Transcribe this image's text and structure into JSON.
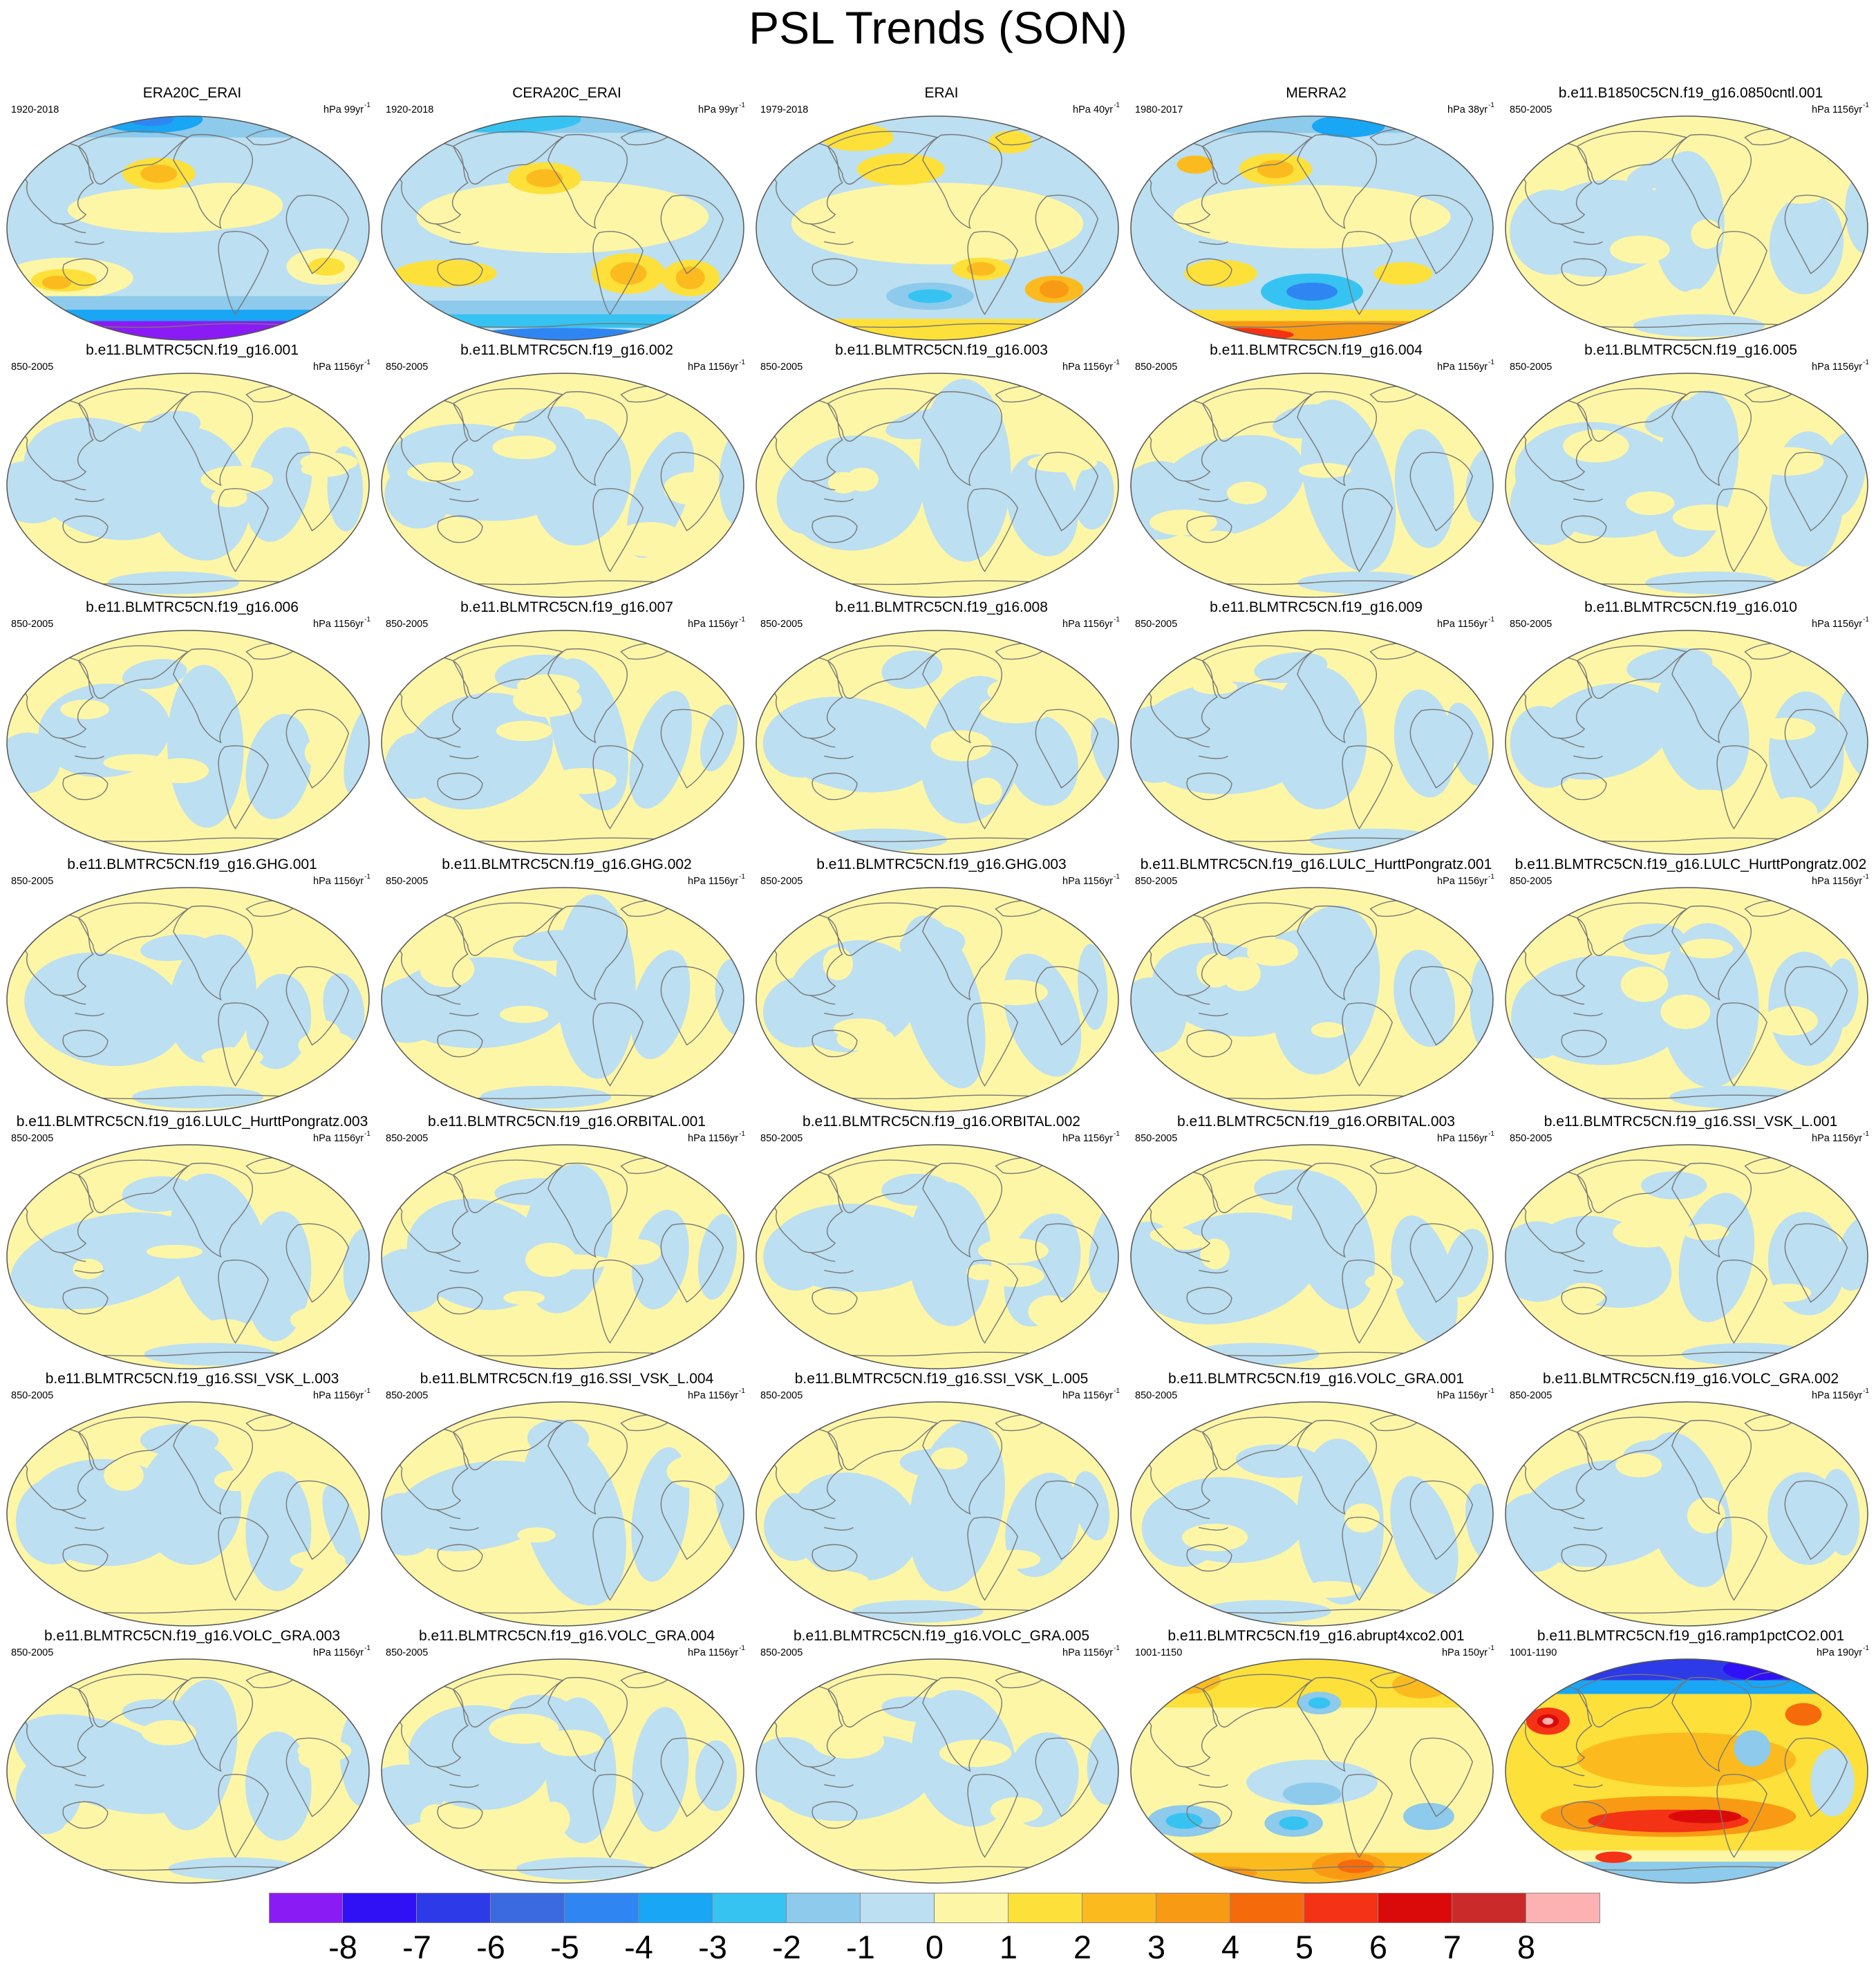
{
  "title": "PSL Trends (SON)",
  "colors": {
    "levels": [
      "#8b1bf5",
      "#3010f5",
      "#2d3ae8",
      "#3b6ae0",
      "#2f86f2",
      "#18a6f5",
      "#36c3f2",
      "#8dcaeb",
      "#bcdff1",
      "#fdf6a6",
      "#fde03a",
      "#fbbb1e",
      "#f99a14",
      "#f56b0c",
      "#f43215",
      "#da0a0a",
      "#cb2a2a",
      "#fcb2b2"
    ],
    "coast": "#777777",
    "outline": "#555555"
  },
  "colorbar": {
    "labels": [
      "-8",
      "-7",
      "-6",
      "-5",
      "-4",
      "-3",
      "-2",
      "-1",
      "0",
      "1",
      "2",
      "3",
      "4",
      "5",
      "6",
      "7",
      "8"
    ]
  },
  "chart_data": {
    "type": "heatmap",
    "title": "PSL Trends (SON)",
    "projection": "Robinson, global, centered on the Pacific",
    "contour_levels": [
      -8,
      -7,
      -6,
      -5,
      -4,
      -3,
      -2,
      -1,
      0,
      1,
      2,
      3,
      4,
      5,
      6,
      7,
      8
    ],
    "panels": [
      {
        "title": "ERA20C_ERAI",
        "period": "1920-2018",
        "units_base": "hPa 99yr",
        "units_exp": "-1",
        "pattern": "era20c"
      },
      {
        "title": "CERA20C_ERAI",
        "period": "1920-2018",
        "units_base": "hPa 99yr",
        "units_exp": "-1",
        "pattern": "cera20c"
      },
      {
        "title": "ERAI",
        "period": "1979-2018",
        "units_base": "hPa 40yr",
        "units_exp": "-1",
        "pattern": "erai"
      },
      {
        "title": "MERRA2",
        "period": "1980-2017",
        "units_base": "hPa 38yr",
        "units_exp": "-1",
        "pattern": "merra2"
      },
      {
        "title": "b.e11.B1850C5CN.f19_g16.0850cntl.001",
        "period": "850-2005",
        "units_base": "hPa 1156yr",
        "units_exp": "-1",
        "pattern": "weak"
      },
      {
        "title": "b.e11.BLMTRC5CN.f19_g16.001",
        "period": "850-2005",
        "units_base": "hPa 1156yr",
        "units_exp": "-1",
        "pattern": "weak"
      },
      {
        "title": "b.e11.BLMTRC5CN.f19_g16.002",
        "period": "850-2005",
        "units_base": "hPa 1156yr",
        "units_exp": "-1",
        "pattern": "weak"
      },
      {
        "title": "b.e11.BLMTRC5CN.f19_g16.003",
        "period": "850-2005",
        "units_base": "hPa 1156yr",
        "units_exp": "-1",
        "pattern": "weak"
      },
      {
        "title": "b.e11.BLMTRC5CN.f19_g16.004",
        "period": "850-2005",
        "units_base": "hPa 1156yr",
        "units_exp": "-1",
        "pattern": "weak"
      },
      {
        "title": "b.e11.BLMTRC5CN.f19_g16.005",
        "period": "850-2005",
        "units_base": "hPa 1156yr",
        "units_exp": "-1",
        "pattern": "weak"
      },
      {
        "title": "b.e11.BLMTRC5CN.f19_g16.006",
        "period": "850-2005",
        "units_base": "hPa 1156yr",
        "units_exp": "-1",
        "pattern": "weak"
      },
      {
        "title": "b.e11.BLMTRC5CN.f19_g16.007",
        "period": "850-2005",
        "units_base": "hPa 1156yr",
        "units_exp": "-1",
        "pattern": "weak"
      },
      {
        "title": "b.e11.BLMTRC5CN.f19_g16.008",
        "period": "850-2005",
        "units_base": "hPa 1156yr",
        "units_exp": "-1",
        "pattern": "weak"
      },
      {
        "title": "b.e11.BLMTRC5CN.f19_g16.009",
        "period": "850-2005",
        "units_base": "hPa 1156yr",
        "units_exp": "-1",
        "pattern": "weak"
      },
      {
        "title": "b.e11.BLMTRC5CN.f19_g16.010",
        "period": "850-2005",
        "units_base": "hPa 1156yr",
        "units_exp": "-1",
        "pattern": "weak"
      },
      {
        "title": "b.e11.BLMTRC5CN.f19_g16.GHG.001",
        "period": "850-2005",
        "units_base": "hPa 1156yr",
        "units_exp": "-1",
        "pattern": "weak"
      },
      {
        "title": "b.e11.BLMTRC5CN.f19_g16.GHG.002",
        "period": "850-2005",
        "units_base": "hPa 1156yr",
        "units_exp": "-1",
        "pattern": "weak"
      },
      {
        "title": "b.e11.BLMTRC5CN.f19_g16.GHG.003",
        "period": "850-2005",
        "units_base": "hPa 1156yr",
        "units_exp": "-1",
        "pattern": "weak"
      },
      {
        "title": "b.e11.BLMTRC5CN.f19_g16.LULC_HurttPongratz.001",
        "period": "850-2005",
        "units_base": "hPa 1156yr",
        "units_exp": "-1",
        "pattern": "weak"
      },
      {
        "title": "b.e11.BLMTRC5CN.f19_g16.LULC_HurttPongratz.002",
        "period": "850-2005",
        "units_base": "hPa 1156yr",
        "units_exp": "-1",
        "pattern": "weak"
      },
      {
        "title": "b.e11.BLMTRC5CN.f19_g16.LULC_HurttPongratz.003",
        "period": "850-2005",
        "units_base": "hPa 1156yr",
        "units_exp": "-1",
        "pattern": "weak"
      },
      {
        "title": "b.e11.BLMTRC5CN.f19_g16.ORBITAL.001",
        "period": "850-2005",
        "units_base": "hPa 1156yr",
        "units_exp": "-1",
        "pattern": "weak"
      },
      {
        "title": "b.e11.BLMTRC5CN.f19_g16.ORBITAL.002",
        "period": "850-2005",
        "units_base": "hPa 1156yr",
        "units_exp": "-1",
        "pattern": "weak"
      },
      {
        "title": "b.e11.BLMTRC5CN.f19_g16.ORBITAL.003",
        "period": "850-2005",
        "units_base": "hPa 1156yr",
        "units_exp": "-1",
        "pattern": "weak"
      },
      {
        "title": "b.e11.BLMTRC5CN.f19_g16.SSI_VSK_L.001",
        "period": "850-2005",
        "units_base": "hPa 1156yr",
        "units_exp": "-1",
        "pattern": "weak"
      },
      {
        "title": "b.e11.BLMTRC5CN.f19_g16.SSI_VSK_L.003",
        "period": "850-2005",
        "units_base": "hPa 1156yr",
        "units_exp": "-1",
        "pattern": "weak"
      },
      {
        "title": "b.e11.BLMTRC5CN.f19_g16.SSI_VSK_L.004",
        "period": "850-2005",
        "units_base": "hPa 1156yr",
        "units_exp": "-1",
        "pattern": "weak"
      },
      {
        "title": "b.e11.BLMTRC5CN.f19_g16.SSI_VSK_L.005",
        "period": "850-2005",
        "units_base": "hPa 1156yr",
        "units_exp": "-1",
        "pattern": "weak"
      },
      {
        "title": "b.e11.BLMTRC5CN.f19_g16.VOLC_GRA.001",
        "period": "850-2005",
        "units_base": "hPa 1156yr",
        "units_exp": "-1",
        "pattern": "weak"
      },
      {
        "title": "b.e11.BLMTRC5CN.f19_g16.VOLC_GRA.002",
        "period": "850-2005",
        "units_base": "hPa 1156yr",
        "units_exp": "-1",
        "pattern": "weak"
      },
      {
        "title": "b.e11.BLMTRC5CN.f19_g16.VOLC_GRA.003",
        "period": "850-2005",
        "units_base": "hPa 1156yr",
        "units_exp": "-1",
        "pattern": "weak"
      },
      {
        "title": "b.e11.BLMTRC5CN.f19_g16.VOLC_GRA.004",
        "period": "850-2005",
        "units_base": "hPa 1156yr",
        "units_exp": "-1",
        "pattern": "weak"
      },
      {
        "title": "b.e11.BLMTRC5CN.f19_g16.VOLC_GRA.005",
        "period": "850-2005",
        "units_base": "hPa 1156yr",
        "units_exp": "-1",
        "pattern": "weak"
      },
      {
        "title": "b.e11.BLMTRC5CN.f19_g16.abrupt4xco2.001",
        "period": "1001-1150",
        "units_base": "hPa 150yr",
        "units_exp": "-1",
        "pattern": "abrupt"
      },
      {
        "title": "b.e11.BLMTRC5CN.f19_g16.ramp1pctCO2.001",
        "period": "1001-1190",
        "units_base": "hPa 190yr",
        "units_exp": "-1",
        "pattern": "ramp"
      }
    ]
  }
}
